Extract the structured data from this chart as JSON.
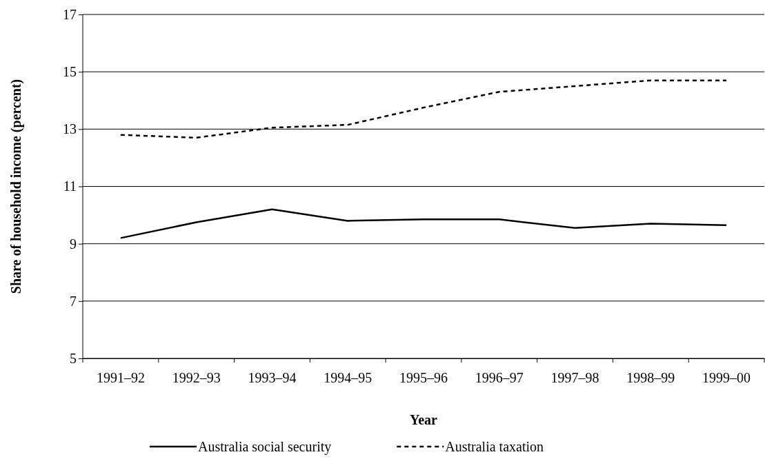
{
  "chart_data": {
    "type": "line",
    "xlabel": "Year",
    "ylabel": "Share of household income (percent)",
    "categories": [
      "1991–92",
      "1992–93",
      "1993–94",
      "1994–95",
      "1995–96",
      "1996–97",
      "1997–98",
      "1998–99",
      "1999–00"
    ],
    "series": [
      {
        "name": "Australia social security",
        "color": "#000000",
        "line_style": "solid",
        "values": [
          9.2,
          9.75,
          10.2,
          9.8,
          9.85,
          9.85,
          9.55,
          9.7,
          9.65
        ]
      },
      {
        "name": "Australia taxation",
        "color": "#000000",
        "line_style": "dashed",
        "values": [
          12.8,
          12.7,
          13.05,
          13.15,
          13.75,
          14.3,
          14.5,
          14.7,
          14.7
        ]
      }
    ],
    "ylim": [
      5,
      17
    ],
    "yticks": [
      5,
      7,
      9,
      11,
      13,
      15,
      17
    ],
    "grid": "y",
    "legend": "bottom",
    "marker": "none"
  }
}
